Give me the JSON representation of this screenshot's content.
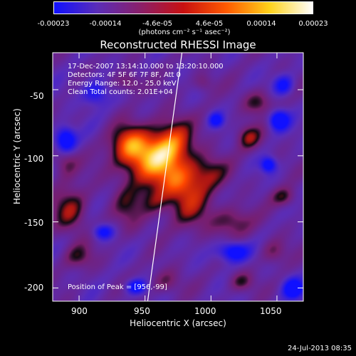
{
  "colorbar": {
    "ticks": [
      "-0.00023",
      "-0.00014",
      "-4.6e-05",
      "4.6e-05",
      "0.00014",
      "0.00023"
    ],
    "unit": "(photons cm⁻² s⁻¹ asec⁻²)",
    "colors": [
      "#1010ff",
      "#5a2db8",
      "#8a1f6a",
      "#c81010",
      "#ff5a00",
      "#ffd21a",
      "#ffffff"
    ]
  },
  "title": "Reconstructed RHESSI Image",
  "info": {
    "line1": "17-Dec-2007 13:14:10.000 to 13:20:10.000",
    "line2": "Detectors: 4F 5F 6F 7F 8F, Att 0",
    "line3": "Energy Range: 12.0 - 25.0 keV",
    "line4": "Clean      Total counts: 2.01E+04"
  },
  "peak_text": "Position of Peak = [956,-99]",
  "x_axis": {
    "label": "Heliocentric X (arcsec)",
    "ticks": [
      "900",
      "950",
      "1000",
      "1050"
    ],
    "range": [
      880,
      1070
    ]
  },
  "y_axis": {
    "label": "Heliocentric Y (arcsec)",
    "ticks": [
      "-50",
      "-100",
      "-150",
      "-200"
    ],
    "range": [
      -210,
      -22
    ]
  },
  "peak_position": [
    956,
    -99
  ],
  "limb_line": [
    [
      952,
      -210
    ],
    [
      978,
      -22
    ]
  ],
  "timestamp": "24-Jul-2013 08:35"
}
